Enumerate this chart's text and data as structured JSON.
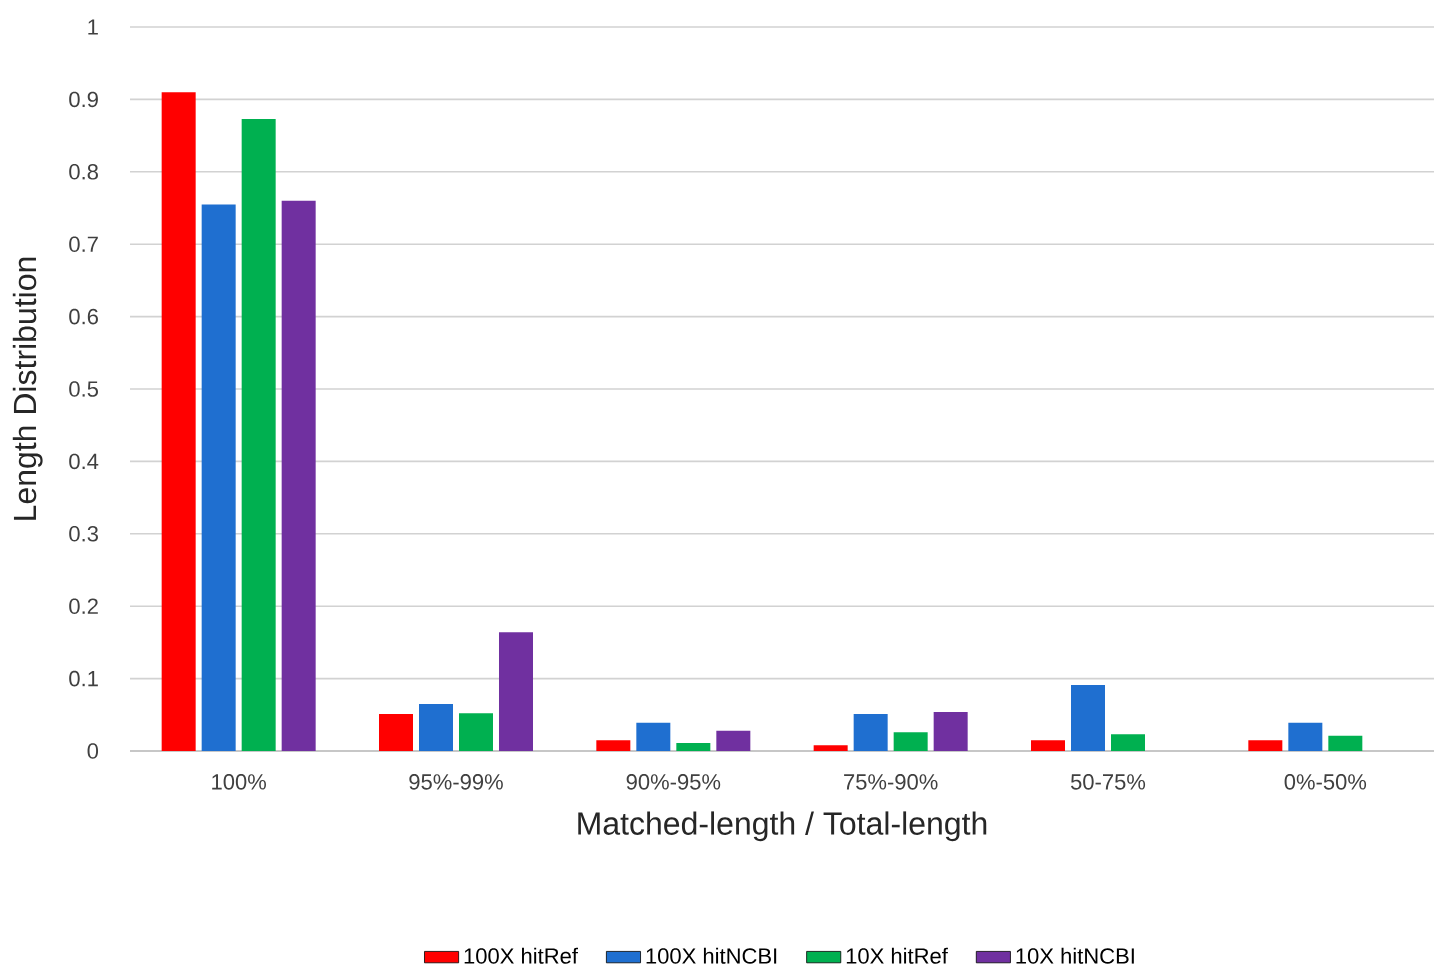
{
  "chart_data": {
    "type": "bar",
    "xlabel": "Matched-length / Total-length",
    "ylabel": "Length Distribution",
    "categories": [
      "100%",
      "95%-99%",
      "90%-95%",
      "75%-90%",
      "50-75%",
      "0%-50%"
    ],
    "series": [
      {
        "name": "100X hitRef",
        "color": "#ff0000",
        "values": [
          0.91,
          0.051,
          0.015,
          0.008,
          0.015,
          0.015
        ]
      },
      {
        "name": "100X hitNCBI",
        "color": "#1f6fd0",
        "values": [
          0.755,
          0.065,
          0.039,
          0.051,
          0.091,
          0.039
        ]
      },
      {
        "name": "10X hitRef",
        "color": "#00b050",
        "values": [
          0.873,
          0.052,
          0.011,
          0.026,
          0.023,
          0.021
        ]
      },
      {
        "name": "10X hitNCBI",
        "color": "#7030a0",
        "values": [
          0.76,
          0.164,
          0.028,
          0.054,
          null,
          null
        ]
      }
    ],
    "ylim": [
      0,
      1
    ],
    "yticks": [
      0,
      0.1,
      0.2,
      0.3,
      0.4,
      0.5,
      0.6,
      0.7,
      0.8,
      0.9,
      1
    ],
    "grid": "y",
    "legend": "bottom"
  }
}
